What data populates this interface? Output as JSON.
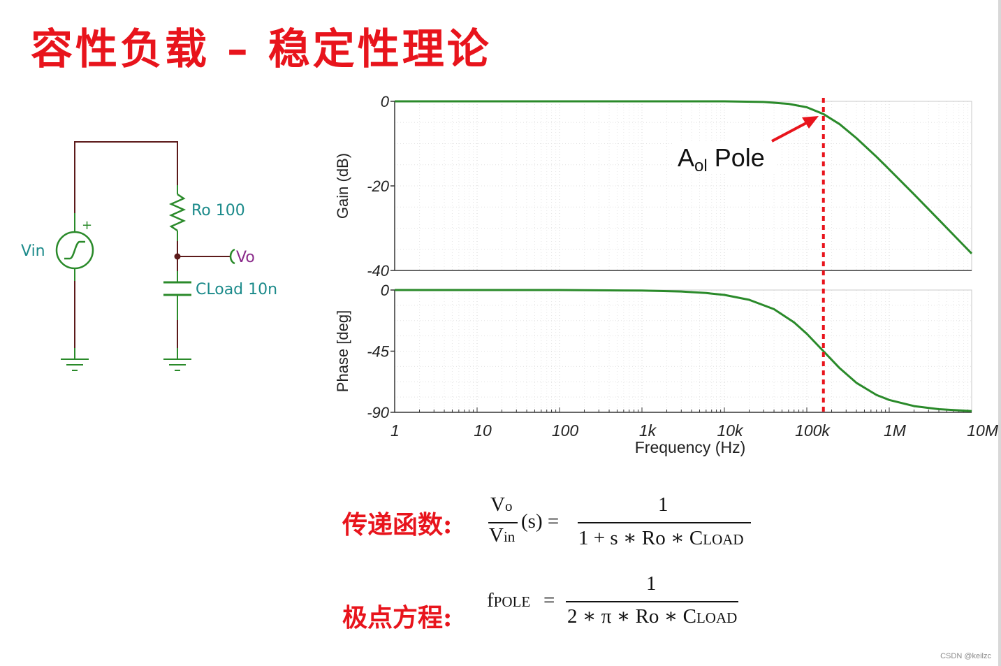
{
  "title": "容性负载 – 稳定性理论",
  "schematic": {
    "source_label": "Vin",
    "plus_sign": "+",
    "resistor_label": "Ro 100",
    "output_label": "Vo",
    "capacitor_label": "CLoad 10n"
  },
  "chart_data": [
    {
      "type": "line",
      "ylabel": "Gain (dB)",
      "xscale": "log",
      "xlim": [
        1,
        10000000
      ],
      "ylim": [
        -40,
        0
      ],
      "yticks": [
        0,
        -20,
        -40
      ],
      "yticklabels": [
        "0",
        "-20",
        "-40"
      ],
      "grid": true,
      "series": [
        {
          "color": "#2a8a2a",
          "x": [
            1,
            10,
            100,
            1000,
            10000,
            30000,
            60000,
            100000,
            159000,
            250000,
            400000,
            700000,
            1000000,
            2000000,
            4000000,
            7000000,
            10000000
          ],
          "y": [
            0,
            0,
            0,
            0,
            0,
            -0.15,
            -0.6,
            -1.4,
            -3.0,
            -5.4,
            -8.7,
            -13.1,
            -16.1,
            -22.0,
            -28.0,
            -32.9,
            -36.0
          ]
        }
      ],
      "annotations": [
        {
          "text_main": "A",
          "text_sub": "ol",
          "text_tail": " Pole",
          "x": 159000,
          "arrow": true
        }
      ],
      "markers": [
        {
          "type": "vline",
          "x": 159000,
          "style": "dashed",
          "color": "#e8141c"
        }
      ]
    },
    {
      "type": "line",
      "ylabel": "Phase [deg]",
      "xlabel": "Frequency (Hz)",
      "xscale": "log",
      "xlim": [
        1,
        10000000
      ],
      "ylim": [
        -90,
        0
      ],
      "yticks": [
        0,
        -45,
        -90
      ],
      "yticklabels": [
        "0",
        "-45",
        "-90"
      ],
      "xticks": [
        1,
        10,
        100,
        1000,
        10000,
        100000,
        1000000,
        10000000
      ],
      "xticklabels": [
        "1",
        "10",
        "100",
        "1k",
        "10k",
        "100k",
        "1M",
        "10M"
      ],
      "grid": true,
      "series": [
        {
          "color": "#2a8a2a",
          "x": [
            1,
            10,
            100,
            1000,
            3000,
            6000,
            10000,
            20000,
            40000,
            70000,
            100000,
            159000,
            250000,
            400000,
            700000,
            1000000,
            2000000,
            4000000,
            10000000
          ],
          "y": [
            0,
            0,
            0,
            -0.4,
            -1.1,
            -2.2,
            -3.6,
            -7.2,
            -14.1,
            -23.8,
            -32.2,
            -45.0,
            -57.5,
            -68.3,
            -77.2,
            -80.9,
            -85.4,
            -87.7,
            -89.1
          ]
        }
      ],
      "markers": [
        {
          "type": "vline",
          "x": 159000,
          "style": "dashed",
          "color": "#e8141c"
        }
      ]
    }
  ],
  "equations": {
    "transfer_label": "传递函数:",
    "transfer_num_left": "V",
    "transfer_num_left_sub": "o",
    "transfer_den_left": "V",
    "transfer_den_left_sub": "in",
    "transfer_s": "(s) =",
    "transfer_rhs_num": "1",
    "transfer_rhs_den": "1 + s ∗ Ro ∗ C",
    "transfer_rhs_den_sub": "LOAD",
    "pole_label": "极点方程:",
    "pole_lhs": "f",
    "pole_lhs_sub": "POLE",
    "pole_eq": "=",
    "pole_rhs_num": "1",
    "pole_rhs_den": "2 ∗ π ∗ Ro ∗ C",
    "pole_rhs_den_sub": "LOAD"
  },
  "watermark": "CSDN @keilzc",
  "colors": {
    "title": "#e8141c",
    "wire": "#5c1a1a",
    "component": "#2a8a2a",
    "label_teal": "#1b8a8a",
    "output_label": "#8a2a8a",
    "curve": "#2a8a2a",
    "pole_line": "#e8141c"
  }
}
